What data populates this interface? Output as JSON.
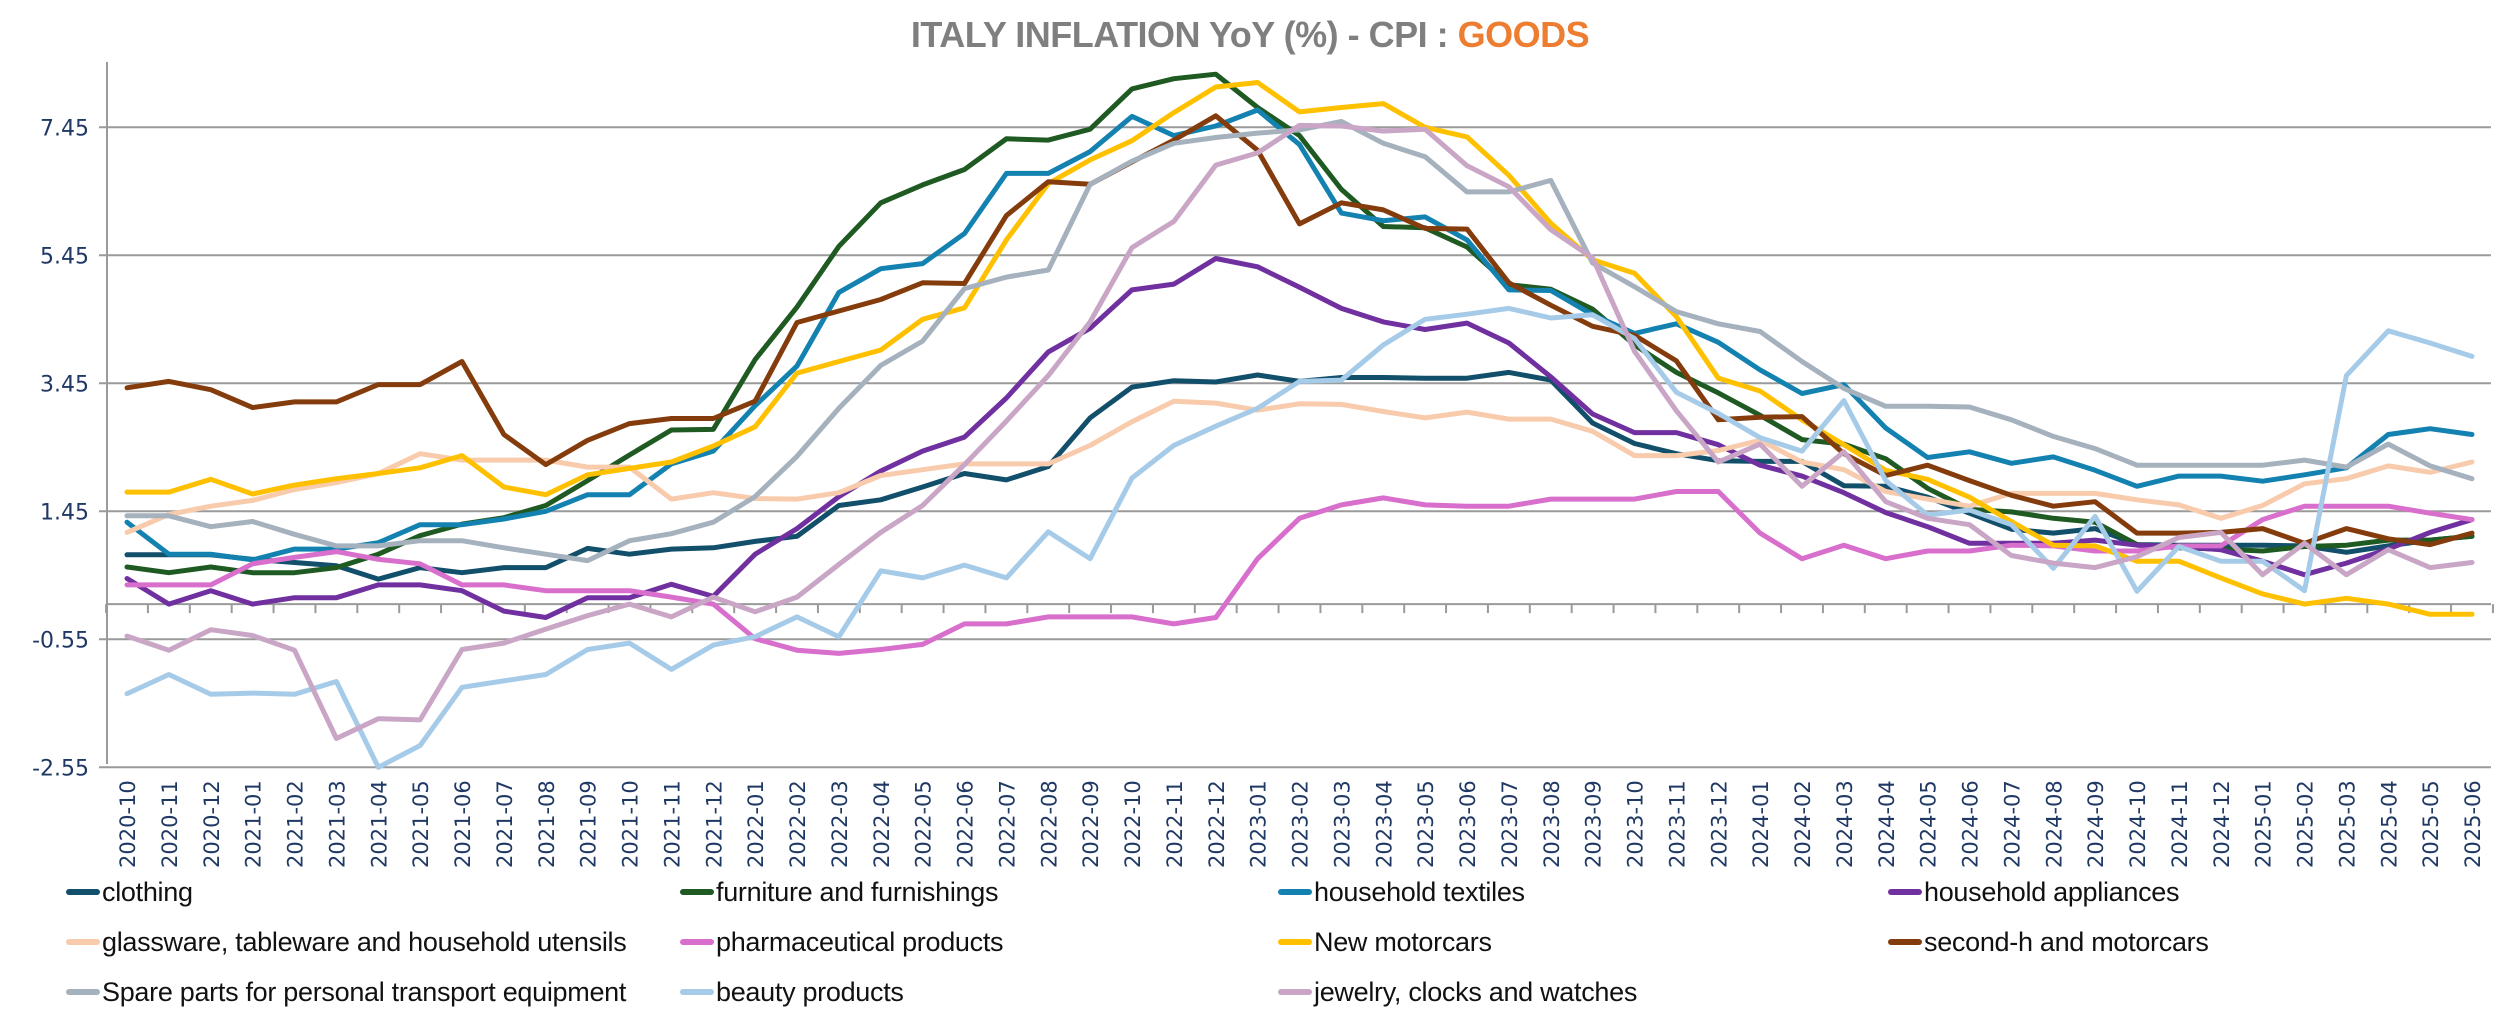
{
  "chart_data": {
    "type": "line",
    "title": "ITALY INFLATION YoY (%) - CPI : ",
    "title_accent": "GOODS",
    "title_color": "#7f7f7f",
    "title_accent_color": "#ed7d31",
    "xlabel": "",
    "ylabel": "",
    "ylim": [
      -2.55,
      8.45
    ],
    "yticks": [
      -2.55,
      -0.55,
      1.45,
      3.45,
      5.45,
      7.45
    ],
    "ytick_labels": [
      "-2.55",
      "-0.55",
      "1.45",
      "3.45",
      "5.45",
      "7.45"
    ],
    "grid": true,
    "legend_position": "bottom",
    "x": [
      "2020-10",
      "2020-11",
      "2020-12",
      "2021-01",
      "2021-02",
      "2021-03",
      "2021-04",
      "2021-05",
      "2021-06",
      "2021-07",
      "2021-08",
      "2021-09",
      "2021-10",
      "2021-11",
      "2021-12",
      "2022-01",
      "2022-02",
      "2022-03",
      "2022-04",
      "2022-05",
      "2022-06",
      "2022-07",
      "2022-08",
      "2022-09",
      "2022-10",
      "2022-11",
      "2022-12",
      "2023-01",
      "2023-02",
      "2023-03",
      "2023-04",
      "2023-05",
      "2023-06",
      "2023-07",
      "2023-08",
      "2023-09",
      "2023-10",
      "2023-11",
      "2023-12",
      "2024-01",
      "2024-02",
      "2024-03",
      "2024-04",
      "2024-05",
      "2024-06",
      "2024-07",
      "2024-08",
      "2024-09",
      "2024-10",
      "2024-11",
      "2024-12",
      "2025-01",
      "2025-02",
      "2025-03",
      "2025-04",
      "2025-05",
      "2025-06"
    ],
    "series": [
      {
        "name": "clothing",
        "color": "#124f6b",
        "values": [
          0.77,
          0.77,
          0.77,
          0.7,
          0.65,
          0.6,
          0.39,
          0.57,
          0.49,
          0.57,
          0.57,
          0.87,
          0.78,
          0.86,
          0.88,
          0.98,
          1.06,
          1.54,
          1.63,
          1.83,
          2.04,
          1.94,
          2.15,
          2.91,
          3.39,
          3.49,
          3.47,
          3.58,
          3.48,
          3.54,
          3.54,
          3.53,
          3.53,
          3.62,
          3.5,
          2.83,
          2.51,
          2.35,
          2.24,
          2.23,
          2.23,
          1.85,
          1.84,
          1.67,
          1.42,
          1.17,
          1.11,
          1.18,
          0.93,
          0.92,
          0.92,
          0.92,
          0.91,
          0.81,
          0.91,
          1.0,
          1.06
        ]
      },
      {
        "name": "furniture and furnishings",
        "color": "#1e5a22",
        "values": [
          0.58,
          0.49,
          0.58,
          0.49,
          0.49,
          0.57,
          0.78,
          1.07,
          1.25,
          1.35,
          1.54,
          1.93,
          2.33,
          2.72,
          2.73,
          3.82,
          4.64,
          5.59,
          6.27,
          6.55,
          6.79,
          7.27,
          7.25,
          7.42,
          8.05,
          8.21,
          8.28,
          7.76,
          7.32,
          6.48,
          5.9,
          5.88,
          5.58,
          4.99,
          4.92,
          4.61,
          4.05,
          3.62,
          3.3,
          2.95,
          2.57,
          2.5,
          2.27,
          1.81,
          1.48,
          1.44,
          1.34,
          1.28,
          0.93,
          0.88,
          0.86,
          0.83,
          0.9,
          0.92,
          1.0,
          1.0,
          1.06
        ]
      },
      {
        "name": "household textiles",
        "color": "#1482b0",
        "values": [
          1.28,
          0.78,
          0.78,
          0.69,
          0.86,
          0.86,
          0.96,
          1.24,
          1.24,
          1.33,
          1.45,
          1.71,
          1.71,
          2.19,
          2.39,
          3.1,
          3.72,
          4.87,
          5.24,
          5.32,
          5.79,
          6.73,
          6.73,
          7.07,
          7.62,
          7.32,
          7.47,
          7.72,
          7.18,
          6.11,
          5.99,
          6.05,
          5.69,
          4.91,
          4.9,
          4.52,
          4.23,
          4.38,
          4.09,
          3.66,
          3.29,
          3.43,
          2.75,
          2.29,
          2.38,
          2.2,
          2.3,
          2.09,
          1.84,
          2.0,
          2.0,
          1.92,
          2.02,
          2.13,
          2.65,
          2.74,
          2.65
        ]
      },
      {
        "name": "household appliances",
        "color": "#7030a0",
        "values": [
          0.4,
          0.0,
          0.21,
          0.0,
          0.1,
          0.1,
          0.3,
          0.3,
          0.21,
          -0.11,
          -0.21,
          0.1,
          0.1,
          0.31,
          0.12,
          0.78,
          1.18,
          1.68,
          2.08,
          2.39,
          2.61,
          3.22,
          3.94,
          4.31,
          4.91,
          5.0,
          5.4,
          5.27,
          4.95,
          4.62,
          4.41,
          4.29,
          4.39,
          4.08,
          3.55,
          2.97,
          2.68,
          2.68,
          2.49,
          2.17,
          2.0,
          1.74,
          1.43,
          1.21,
          0.95,
          0.95,
          0.95,
          1.0,
          0.92,
          0.9,
          0.85,
          0.67,
          0.46,
          0.64,
          0.86,
          1.12,
          1.32
        ]
      },
      {
        "name": "glassware, tableware and household utensils",
        "color": "#f8cbad",
        "values": [
          1.12,
          1.4,
          1.53,
          1.62,
          1.79,
          1.9,
          2.04,
          2.35,
          2.25,
          2.25,
          2.25,
          2.14,
          2.14,
          1.64,
          1.74,
          1.65,
          1.64,
          1.74,
          2.01,
          2.1,
          2.19,
          2.19,
          2.19,
          2.48,
          2.85,
          3.17,
          3.14,
          3.03,
          3.13,
          3.12,
          3.01,
          2.91,
          3.0,
          2.89,
          2.89,
          2.7,
          2.32,
          2.32,
          2.4,
          2.56,
          2.22,
          2.1,
          1.76,
          1.64,
          1.53,
          1.73,
          1.73,
          1.73,
          1.63,
          1.55,
          1.34,
          1.54,
          1.88,
          1.96,
          2.16,
          2.06,
          2.22
        ]
      },
      {
        "name": "pharmaceutical products",
        "color": "#d86fcc",
        "values": [
          0.3,
          0.3,
          0.3,
          0.63,
          0.73,
          0.82,
          0.7,
          0.63,
          0.3,
          0.3,
          0.21,
          0.21,
          0.21,
          0.11,
          0.0,
          -0.54,
          -0.72,
          -0.77,
          -0.71,
          -0.63,
          -0.31,
          -0.31,
          -0.2,
          -0.2,
          -0.2,
          -0.31,
          -0.21,
          0.71,
          1.34,
          1.55,
          1.66,
          1.55,
          1.53,
          1.53,
          1.64,
          1.64,
          1.64,
          1.76,
          1.76,
          1.11,
          0.71,
          0.92,
          0.71,
          0.83,
          0.83,
          0.92,
          0.91,
          0.83,
          0.83,
          0.91,
          0.91,
          1.32,
          1.53,
          1.53,
          1.53,
          1.42,
          1.32
        ]
      },
      {
        "name": "New motorcars",
        "color": "#ffc000",
        "values": [
          1.75,
          1.75,
          1.95,
          1.72,
          1.86,
          1.96,
          2.04,
          2.13,
          2.32,
          1.83,
          1.71,
          2.02,
          2.12,
          2.22,
          2.47,
          2.77,
          3.61,
          3.79,
          3.97,
          4.45,
          4.63,
          5.69,
          6.57,
          6.94,
          7.24,
          7.68,
          8.08,
          8.15,
          7.69,
          7.76,
          7.82,
          7.45,
          7.3,
          6.7,
          5.95,
          5.38,
          5.17,
          4.49,
          3.53,
          3.33,
          2.88,
          2.49,
          2.09,
          1.95,
          1.67,
          1.29,
          0.92,
          0.91,
          0.67,
          0.67,
          0.41,
          0.16,
          0.0,
          0.09,
          0.0,
          -0.16,
          -0.16
        ]
      },
      {
        "name": "second-h and motorcars",
        "color": "#843c0c",
        "values": [
          3.38,
          3.48,
          3.35,
          3.07,
          3.16,
          3.16,
          3.43,
          3.43,
          3.79,
          2.65,
          2.18,
          2.56,
          2.82,
          2.9,
          2.9,
          3.17,
          4.4,
          4.58,
          4.76,
          5.02,
          5.01,
          6.07,
          6.6,
          6.56,
          6.91,
          7.25,
          7.63,
          7.09,
          5.94,
          6.27,
          6.16,
          5.87,
          5.86,
          5.02,
          4.67,
          4.34,
          4.2,
          3.8,
          2.88,
          2.92,
          2.93,
          2.35,
          2.01,
          2.17,
          1.93,
          1.7,
          1.53,
          1.6,
          1.11,
          1.11,
          1.12,
          1.18,
          0.95,
          1.18,
          1.02,
          0.93,
          1.11
        ]
      },
      {
        "name": "Spare parts for personal transport equipment",
        "color": "#a5b1bd",
        "values": [
          1.38,
          1.38,
          1.21,
          1.29,
          1.09,
          0.91,
          0.91,
          0.99,
          0.99,
          0.88,
          0.78,
          0.68,
          0.99,
          1.1,
          1.28,
          1.68,
          2.31,
          3.06,
          3.73,
          4.11,
          4.93,
          5.11,
          5.22,
          6.56,
          6.92,
          7.2,
          7.29,
          7.36,
          7.41,
          7.54,
          7.2,
          6.99,
          6.44,
          6.44,
          6.62,
          5.33,
          4.96,
          4.57,
          4.38,
          4.26,
          3.79,
          3.37,
          3.09,
          3.09,
          3.08,
          2.88,
          2.62,
          2.43,
          2.17,
          2.17,
          2.17,
          2.17,
          2.25,
          2.14,
          2.5,
          2.16,
          1.96
        ]
      },
      {
        "name": "beauty products",
        "color": "#a6cbe8",
        "values": [
          -1.4,
          -1.1,
          -1.41,
          -1.39,
          -1.41,
          -1.21,
          -2.55,
          -2.21,
          -1.3,
          -1.2,
          -1.1,
          -0.71,
          -0.61,
          -1.02,
          -0.64,
          -0.51,
          -0.2,
          -0.51,
          0.52,
          0.41,
          0.61,
          0.41,
          1.13,
          0.71,
          1.97,
          2.48,
          2.78,
          3.06,
          3.48,
          3.5,
          4.05,
          4.45,
          4.53,
          4.62,
          4.47,
          4.52,
          4.15,
          3.31,
          2.98,
          2.6,
          2.39,
          3.18,
          1.93,
          1.39,
          1.47,
          1.24,
          0.56,
          1.37,
          0.2,
          0.9,
          0.67,
          0.67,
          0.21,
          3.57,
          4.27,
          4.08,
          3.87
        ]
      },
      {
        "name": "jewelry, clocks and watches",
        "color": "#c9a6c6",
        "values": [
          -0.5,
          -0.72,
          -0.4,
          -0.49,
          -0.72,
          -2.1,
          -1.79,
          -1.81,
          -0.71,
          -0.61,
          -0.39,
          -0.18,
          0.0,
          -0.2,
          0.11,
          -0.12,
          0.11,
          0.62,
          1.12,
          1.54,
          2.18,
          2.86,
          3.57,
          4.41,
          5.57,
          5.98,
          6.86,
          7.05,
          7.48,
          7.47,
          7.39,
          7.42,
          6.85,
          6.52,
          5.85,
          5.41,
          3.95,
          3.02,
          2.22,
          2.5,
          1.84,
          2.38,
          1.6,
          1.34,
          1.24,
          0.76,
          0.64,
          0.57,
          0.74,
          1.04,
          1.12,
          0.46,
          0.95,
          0.46,
          0.85,
          0.57,
          0.65
        ]
      }
    ]
  },
  "legend": {
    "order": [
      0,
      1,
      2,
      3,
      4,
      5,
      6,
      7,
      8,
      9,
      10
    ]
  }
}
